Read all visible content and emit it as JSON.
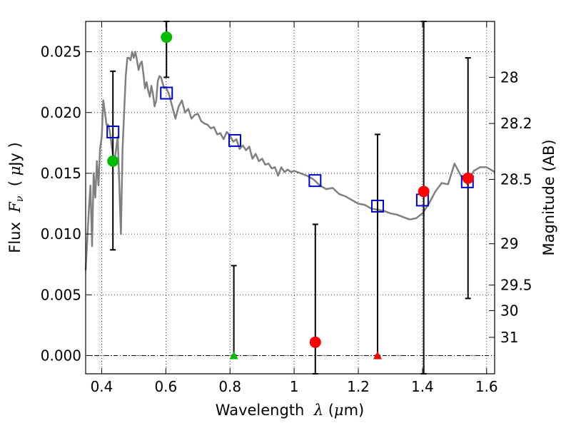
{
  "chart_data": {
    "type": "scatter",
    "xlabel_parts": [
      "Wavelength  ",
      "λ",
      " (",
      "μ",
      "m)"
    ],
    "ylabel_parts": [
      "Flux  ",
      "F",
      "ν",
      "  ( ",
      "μ",
      "Jy )"
    ],
    "y2label": "Magnitude (AB)",
    "xlim": [
      0.35,
      1.625
    ],
    "ylim": [
      -0.0015,
      0.0275
    ],
    "x_ticks": [
      0.4,
      0.6,
      0.8,
      1.0,
      1.2,
      1.4,
      1.6
    ],
    "x_tick_labels": [
      "0.4",
      "0.6",
      "0.8",
      "1",
      "1.2",
      "1.4",
      "1.6"
    ],
    "y_ticks": [
      0.0,
      0.005,
      0.01,
      0.015,
      0.02,
      0.025
    ],
    "y_tick_labels": [
      "0.000",
      "0.005",
      "0.010",
      "0.015",
      "0.020",
      "0.025"
    ],
    "y2_ticks": [
      {
        "flux": 0.0229,
        "label": "28"
      },
      {
        "flux": 0.0191,
        "label": "28.2"
      },
      {
        "flux": 0.0145,
        "label": "28.5"
      },
      {
        "flux": 0.0092,
        "label": "29"
      },
      {
        "flux": 0.0058,
        "label": "29.5"
      },
      {
        "flux": 0.0037,
        "label": "30"
      },
      {
        "flux": 0.0015,
        "label": "31"
      }
    ],
    "grid": true,
    "colors": {
      "spectrum": "#808080",
      "model": "#0000cc",
      "green": "#00bb00",
      "red": "#ff0000",
      "errorbar": "#000000"
    },
    "series": [
      {
        "kind": "spectrum",
        "x": [
          0.35,
          0.36,
          0.365,
          0.37,
          0.375,
          0.38,
          0.385,
          0.39,
          0.395,
          0.4,
          0.405,
          0.41,
          0.415,
          0.42,
          0.425,
          0.43,
          0.435,
          0.44,
          0.445,
          0.45,
          0.455,
          0.46,
          0.465,
          0.47,
          0.475,
          0.48,
          0.485,
          0.49,
          0.495,
          0.5,
          0.505,
          0.51,
          0.515,
          0.52,
          0.525,
          0.53,
          0.535,
          0.54,
          0.545,
          0.55,
          0.555,
          0.56,
          0.565,
          0.57,
          0.575,
          0.58,
          0.585,
          0.59,
          0.595,
          0.6,
          0.61,
          0.62,
          0.63,
          0.64,
          0.65,
          0.66,
          0.67,
          0.68,
          0.69,
          0.7,
          0.71,
          0.72,
          0.73,
          0.74,
          0.75,
          0.76,
          0.77,
          0.78,
          0.79,
          0.8,
          0.81,
          0.82,
          0.83,
          0.84,
          0.85,
          0.86,
          0.87,
          0.88,
          0.89,
          0.9,
          0.91,
          0.92,
          0.93,
          0.94,
          0.95,
          0.96,
          0.97,
          0.98,
          0.99,
          1.0,
          1.02,
          1.04,
          1.06,
          1.08,
          1.1,
          1.12,
          1.14,
          1.16,
          1.18,
          1.2,
          1.22,
          1.24,
          1.26,
          1.28,
          1.3,
          1.32,
          1.34,
          1.36,
          1.38,
          1.4,
          1.42,
          1.44,
          1.46,
          1.48,
          1.5,
          1.52,
          1.54,
          1.56,
          1.58,
          1.6,
          1.625
        ],
        "y": [
          0.007,
          0.012,
          0.014,
          0.009,
          0.015,
          0.013,
          0.016,
          0.014,
          0.017,
          0.018,
          0.021,
          0.02,
          0.019,
          0.019,
          0.0185,
          0.0175,
          0.0165,
          0.016,
          0.017,
          0.018,
          0.014,
          0.01,
          0.017,
          0.02,
          0.023,
          0.0245,
          0.0245,
          0.0243,
          0.025,
          0.0245,
          0.025,
          0.0243,
          0.0235,
          0.024,
          0.0242,
          0.0232,
          0.022,
          0.0225,
          0.0218,
          0.0213,
          0.0222,
          0.0215,
          0.0205,
          0.021,
          0.0226,
          0.023,
          0.0229,
          0.0224,
          0.022,
          0.0221,
          0.0215,
          0.0205,
          0.0195,
          0.0205,
          0.021,
          0.02,
          0.0203,
          0.0195,
          0.0198,
          0.0199,
          0.0193,
          0.0191,
          0.019,
          0.0187,
          0.0188,
          0.0182,
          0.0183,
          0.0178,
          0.0184,
          0.0181,
          0.0176,
          0.0178,
          0.017,
          0.0173,
          0.0169,
          0.0172,
          0.0162,
          0.0166,
          0.016,
          0.0162,
          0.0157,
          0.0158,
          0.0154,
          0.0155,
          0.0148,
          0.0155,
          0.0151,
          0.0153,
          0.0151,
          0.0152,
          0.015,
          0.0148,
          0.0145,
          0.014,
          0.0137,
          0.0138,
          0.0133,
          0.0131,
          0.0128,
          0.0125,
          0.0124,
          0.0121,
          0.012,
          0.0119,
          0.0117,
          0.0116,
          0.0114,
          0.0112,
          0.0113,
          0.0117,
          0.0125,
          0.0135,
          0.0142,
          0.0141,
          0.0158,
          0.0148,
          0.0141,
          0.0152,
          0.0155,
          0.0155,
          0.0151
        ]
      },
      {
        "kind": "model",
        "x": [
          0.435,
          0.602,
          0.815,
          1.065,
          1.26,
          1.4,
          1.54
        ],
        "y": [
          0.0184,
          0.0216,
          0.0177,
          0.0144,
          0.0123,
          0.0128,
          0.0143
        ]
      },
      {
        "kind": "detections",
        "points": [
          {
            "x": 0.435,
            "y": 0.016,
            "err_lo": 0.0087,
            "err_hi": 0.0234,
            "color": "green"
          },
          {
            "x": 0.602,
            "y": 0.0262,
            "err_lo": 0.0229,
            "err_hi": 0.0275,
            "color": "green"
          },
          {
            "x": 1.404,
            "y": 0.0135,
            "err_lo": -0.0015,
            "err_hi": 0.0275,
            "color": "red"
          },
          {
            "x": 1.542,
            "y": 0.0146,
            "err_lo": 0.0047,
            "err_hi": 0.0245,
            "color": "red"
          },
          {
            "x": 1.066,
            "y": 0.0011,
            "err_lo": -0.0015,
            "err_hi": 0.0108,
            "color": "red"
          }
        ]
      },
      {
        "kind": "upper_limits",
        "points": [
          {
            "x": 0.812,
            "y": 0.0,
            "err_hi": 0.0074,
            "color": "green"
          },
          {
            "x": 1.26,
            "y": 0.0,
            "err_hi": 0.0182,
            "color": "red"
          }
        ]
      }
    ]
  }
}
